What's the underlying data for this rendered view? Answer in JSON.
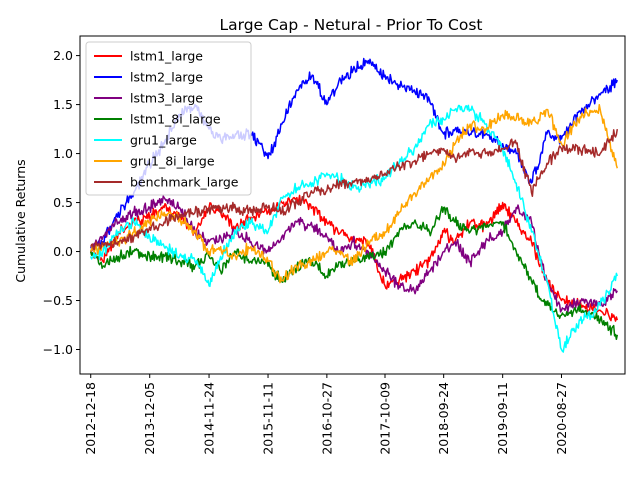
{
  "chart_data": {
    "type": "line",
    "title": "Large Cap - Netural - Prior To Cost",
    "xlabel": "",
    "ylabel": "Cumulative Returns",
    "xlim": [
      "2012-10-15",
      "2021-09-10"
    ],
    "ylim": [
      -1.25,
      2.2
    ],
    "x_ticks": [
      "2012-12-18",
      "2013-12-05",
      "2014-11-24",
      "2015-11-11",
      "2016-10-27",
      "2017-10-09",
      "2018-09-24",
      "2019-09-11",
      "2020-08-27"
    ],
    "y_ticks": [
      -1.0,
      -0.5,
      0.0,
      0.5,
      1.0,
      1.5,
      2.0
    ],
    "y_tick_labels": [
      "−1.0",
      "−0.5",
      "0.0",
      "0.5",
      "1.0",
      "1.5",
      "2.0"
    ],
    "grid": false,
    "legend_position": "upper-left",
    "series": [
      {
        "name": "lstm1_large",
        "color": "#ff0000",
        "points": [
          [
            "2012-12-18",
            0.0
          ],
          [
            "2013-03-01",
            -0.1
          ],
          [
            "2013-06-01",
            0.2
          ],
          [
            "2013-09-01",
            0.3
          ],
          [
            "2013-12-05",
            0.35
          ],
          [
            "2014-03-01",
            0.45
          ],
          [
            "2014-06-01",
            0.35
          ],
          [
            "2014-09-01",
            0.2
          ],
          [
            "2014-11-24",
            0.45
          ],
          [
            "2015-02-01",
            0.4
          ],
          [
            "2015-05-01",
            0.25
          ],
          [
            "2015-08-01",
            0.35
          ],
          [
            "2015-11-11",
            0.4
          ],
          [
            "2016-02-01",
            0.5
          ],
          [
            "2016-05-01",
            0.55
          ],
          [
            "2016-08-01",
            0.45
          ],
          [
            "2016-10-27",
            0.3
          ],
          [
            "2017-01-01",
            0.2
          ],
          [
            "2017-04-01",
            0.15
          ],
          [
            "2017-07-01",
            0.1
          ],
          [
            "2017-10-09",
            -0.35
          ],
          [
            "2018-01-01",
            -0.3
          ],
          [
            "2018-04-01",
            -0.2
          ],
          [
            "2018-07-01",
            -0.1
          ],
          [
            "2018-09-24",
            0.2
          ],
          [
            "2018-12-01",
            0.1
          ],
          [
            "2019-03-01",
            0.3
          ],
          [
            "2019-06-01",
            0.25
          ],
          [
            "2019-09-11",
            0.5
          ],
          [
            "2019-12-01",
            0.3
          ],
          [
            "2020-03-01",
            0.1
          ],
          [
            "2020-06-01",
            -0.3
          ],
          [
            "2020-08-27",
            -0.5
          ],
          [
            "2021-01-01",
            -0.55
          ],
          [
            "2021-04-15",
            -0.6
          ],
          [
            "2021-07-26",
            -0.7
          ]
        ]
      },
      {
        "name": "lstm2_large",
        "color": "#0000ff",
        "points": [
          [
            "2012-12-18",
            0.05
          ],
          [
            "2013-03-01",
            0.1
          ],
          [
            "2013-06-01",
            0.4
          ],
          [
            "2013-09-01",
            0.6
          ],
          [
            "2013-12-05",
            0.9
          ],
          [
            "2014-03-01",
            1.1
          ],
          [
            "2014-06-01",
            1.4
          ],
          [
            "2014-09-01",
            1.5
          ],
          [
            "2014-11-24",
            1.25
          ],
          [
            "2015-02-01",
            1.15
          ],
          [
            "2015-05-01",
            1.2
          ],
          [
            "2015-08-01",
            1.2
          ],
          [
            "2015-11-11",
            0.95
          ],
          [
            "2016-02-01",
            1.3
          ],
          [
            "2016-05-01",
            1.65
          ],
          [
            "2016-08-01",
            1.8
          ],
          [
            "2016-10-27",
            1.5
          ],
          [
            "2017-01-01",
            1.7
          ],
          [
            "2017-04-01",
            1.85
          ],
          [
            "2017-07-01",
            1.95
          ],
          [
            "2017-10-09",
            1.8
          ],
          [
            "2018-01-01",
            1.7
          ],
          [
            "2018-04-01",
            1.65
          ],
          [
            "2018-07-01",
            1.55
          ],
          [
            "2018-09-24",
            1.2
          ],
          [
            "2018-12-01",
            1.25
          ],
          [
            "2019-03-01",
            1.2
          ],
          [
            "2019-06-01",
            1.2
          ],
          [
            "2019-09-11",
            1.1
          ],
          [
            "2019-12-01",
            1.0
          ],
          [
            "2020-03-01",
            0.7
          ],
          [
            "2020-06-01",
            1.2
          ],
          [
            "2020-08-27",
            1.15
          ],
          [
            "2021-01-01",
            1.45
          ],
          [
            "2021-04-15",
            1.6
          ],
          [
            "2021-07-26",
            1.75
          ]
        ]
      },
      {
        "name": "lstm3_large",
        "color": "#800080",
        "points": [
          [
            "2012-12-18",
            0.02
          ],
          [
            "2013-03-01",
            0.15
          ],
          [
            "2013-06-01",
            0.3
          ],
          [
            "2013-09-01",
            0.4
          ],
          [
            "2013-12-05",
            0.45
          ],
          [
            "2014-03-01",
            0.55
          ],
          [
            "2014-06-01",
            0.45
          ],
          [
            "2014-09-01",
            0.2
          ],
          [
            "2014-11-24",
            0.1
          ],
          [
            "2015-02-01",
            0.15
          ],
          [
            "2015-05-01",
            0.2
          ],
          [
            "2015-08-01",
            0.1
          ],
          [
            "2015-11-11",
            0.0
          ],
          [
            "2016-02-01",
            0.15
          ],
          [
            "2016-05-01",
            0.3
          ],
          [
            "2016-08-01",
            0.25
          ],
          [
            "2016-10-27",
            0.15
          ],
          [
            "2017-01-01",
            0.0
          ],
          [
            "2017-04-01",
            0.1
          ],
          [
            "2017-07-01",
            0.0
          ],
          [
            "2017-10-09",
            -0.2
          ],
          [
            "2018-01-01",
            -0.35
          ],
          [
            "2018-04-01",
            -0.4
          ],
          [
            "2018-07-01",
            -0.2
          ],
          [
            "2018-09-24",
            0.0
          ],
          [
            "2018-12-01",
            0.1
          ],
          [
            "2019-03-01",
            -0.1
          ],
          [
            "2019-06-01",
            0.1
          ],
          [
            "2019-09-11",
            0.2
          ],
          [
            "2019-12-01",
            0.45
          ],
          [
            "2020-03-01",
            0.3
          ],
          [
            "2020-06-01",
            -0.3
          ],
          [
            "2020-08-27",
            -0.6
          ],
          [
            "2021-01-01",
            -0.5
          ],
          [
            "2021-04-15",
            -0.55
          ],
          [
            "2021-07-26",
            -0.4
          ]
        ]
      },
      {
        "name": "lstm1_8i_large",
        "color": "#008000",
        "points": [
          [
            "2012-12-18",
            0.0
          ],
          [
            "2013-03-01",
            -0.15
          ],
          [
            "2013-06-01",
            -0.05
          ],
          [
            "2013-09-01",
            0.0
          ],
          [
            "2013-12-05",
            -0.05
          ],
          [
            "2014-03-01",
            -0.05
          ],
          [
            "2014-06-01",
            -0.1
          ],
          [
            "2014-09-01",
            -0.15
          ],
          [
            "2014-11-24",
            -0.05
          ],
          [
            "2015-02-01",
            -0.2
          ],
          [
            "2015-05-01",
            0.0
          ],
          [
            "2015-08-01",
            -0.1
          ],
          [
            "2015-11-11",
            -0.15
          ],
          [
            "2016-02-01",
            -0.3
          ],
          [
            "2016-05-01",
            -0.15
          ],
          [
            "2016-08-01",
            -0.1
          ],
          [
            "2016-10-27",
            -0.25
          ],
          [
            "2017-01-01",
            -0.15
          ],
          [
            "2017-04-01",
            -0.1
          ],
          [
            "2017-07-01",
            -0.05
          ],
          [
            "2017-10-09",
            0.0
          ],
          [
            "2018-01-01",
            0.2
          ],
          [
            "2018-04-01",
            0.3
          ],
          [
            "2018-07-01",
            0.2
          ],
          [
            "2018-09-24",
            0.45
          ],
          [
            "2018-12-01",
            0.3
          ],
          [
            "2019-03-01",
            0.2
          ],
          [
            "2019-06-01",
            0.25
          ],
          [
            "2019-09-11",
            0.3
          ],
          [
            "2019-12-01",
            0.0
          ],
          [
            "2020-03-01",
            -0.3
          ],
          [
            "2020-06-01",
            -0.55
          ],
          [
            "2020-08-27",
            -0.65
          ],
          [
            "2021-01-01",
            -0.6
          ],
          [
            "2021-04-15",
            -0.7
          ],
          [
            "2021-07-26",
            -0.85
          ]
        ]
      },
      {
        "name": "gru1_large",
        "color": "#00ffff",
        "points": [
          [
            "2012-12-18",
            -0.05
          ],
          [
            "2013-03-01",
            0.0
          ],
          [
            "2013-06-01",
            0.2
          ],
          [
            "2013-09-01",
            0.3
          ],
          [
            "2013-12-05",
            0.15
          ],
          [
            "2014-03-01",
            0.05
          ],
          [
            "2014-06-01",
            -0.05
          ],
          [
            "2014-09-01",
            -0.1
          ],
          [
            "2014-11-24",
            -0.35
          ],
          [
            "2015-02-01",
            -0.05
          ],
          [
            "2015-05-01",
            0.2
          ],
          [
            "2015-08-01",
            0.3
          ],
          [
            "2015-11-11",
            0.2
          ],
          [
            "2016-02-01",
            0.55
          ],
          [
            "2016-05-01",
            0.65
          ],
          [
            "2016-08-01",
            0.7
          ],
          [
            "2016-10-27",
            0.8
          ],
          [
            "2017-01-01",
            0.75
          ],
          [
            "2017-04-01",
            0.65
          ],
          [
            "2017-07-01",
            0.7
          ],
          [
            "2017-10-09",
            0.75
          ],
          [
            "2018-01-01",
            0.9
          ],
          [
            "2018-04-01",
            1.05
          ],
          [
            "2018-07-01",
            1.3
          ],
          [
            "2018-09-24",
            1.35
          ],
          [
            "2018-12-01",
            1.45
          ],
          [
            "2019-03-01",
            1.45
          ],
          [
            "2019-06-01",
            1.3
          ],
          [
            "2019-09-11",
            1.05
          ],
          [
            "2019-12-01",
            0.7
          ],
          [
            "2020-03-01",
            0.2
          ],
          [
            "2020-06-01",
            -0.3
          ],
          [
            "2020-08-27",
            -1.0
          ],
          [
            "2021-01-01",
            -0.7
          ],
          [
            "2021-04-15",
            -0.55
          ],
          [
            "2021-07-26",
            -0.25
          ]
        ]
      },
      {
        "name": "gru1_8i_large",
        "color": "#ffa500",
        "points": [
          [
            "2012-12-18",
            0.0
          ],
          [
            "2013-03-01",
            0.05
          ],
          [
            "2013-06-01",
            0.1
          ],
          [
            "2013-09-01",
            0.2
          ],
          [
            "2013-12-05",
            0.3
          ],
          [
            "2014-03-01",
            0.4
          ],
          [
            "2014-06-01",
            0.35
          ],
          [
            "2014-09-01",
            0.2
          ],
          [
            "2014-11-24",
            0.0
          ],
          [
            "2015-02-01",
            0.05
          ],
          [
            "2015-05-01",
            -0.05
          ],
          [
            "2015-08-01",
            0.05
          ],
          [
            "2015-11-11",
            -0.1
          ],
          [
            "2016-02-01",
            -0.3
          ],
          [
            "2016-05-01",
            -0.15
          ],
          [
            "2016-08-01",
            -0.1
          ],
          [
            "2016-10-27",
            0.0
          ],
          [
            "2017-01-01",
            0.0
          ],
          [
            "2017-04-01",
            -0.1
          ],
          [
            "2017-07-01",
            0.1
          ],
          [
            "2017-10-09",
            0.2
          ],
          [
            "2018-01-01",
            0.4
          ],
          [
            "2018-04-01",
            0.6
          ],
          [
            "2018-07-01",
            0.75
          ],
          [
            "2018-09-24",
            0.9
          ],
          [
            "2018-12-01",
            1.1
          ],
          [
            "2019-03-01",
            1.3
          ],
          [
            "2019-06-01",
            1.25
          ],
          [
            "2019-09-11",
            1.4
          ],
          [
            "2019-12-01",
            1.35
          ],
          [
            "2020-03-01",
            1.3
          ],
          [
            "2020-06-01",
            1.45
          ],
          [
            "2020-08-27",
            1.1
          ],
          [
            "2021-01-01",
            1.4
          ],
          [
            "2021-04-15",
            1.45
          ],
          [
            "2021-07-26",
            0.85
          ]
        ]
      },
      {
        "name": "benchmark_large",
        "color": "#a52a2a",
        "points": [
          [
            "2012-12-18",
            0.05
          ],
          [
            "2013-03-01",
            0.08
          ],
          [
            "2013-06-01",
            0.1
          ],
          [
            "2013-09-01",
            0.15
          ],
          [
            "2013-12-05",
            0.25
          ],
          [
            "2014-03-01",
            0.3
          ],
          [
            "2014-06-01",
            0.38
          ],
          [
            "2014-09-01",
            0.4
          ],
          [
            "2014-11-24",
            0.45
          ],
          [
            "2015-02-01",
            0.45
          ],
          [
            "2015-05-01",
            0.45
          ],
          [
            "2015-08-01",
            0.4
          ],
          [
            "2015-11-11",
            0.45
          ],
          [
            "2016-02-01",
            0.4
          ],
          [
            "2016-05-01",
            0.5
          ],
          [
            "2016-08-01",
            0.6
          ],
          [
            "2016-10-27",
            0.62
          ],
          [
            "2017-01-01",
            0.68
          ],
          [
            "2017-04-01",
            0.72
          ],
          [
            "2017-07-01",
            0.75
          ],
          [
            "2017-10-09",
            0.8
          ],
          [
            "2018-01-01",
            0.88
          ],
          [
            "2018-04-01",
            0.92
          ],
          [
            "2018-07-01",
            1.0
          ],
          [
            "2018-09-24",
            1.05
          ],
          [
            "2018-12-01",
            0.95
          ],
          [
            "2019-03-01",
            1.02
          ],
          [
            "2019-06-01",
            1.0
          ],
          [
            "2019-09-11",
            1.05
          ],
          [
            "2019-12-01",
            1.1
          ],
          [
            "2020-03-01",
            0.6
          ],
          [
            "2020-06-01",
            0.9
          ],
          [
            "2020-08-27",
            1.05
          ],
          [
            "2021-01-01",
            1.05
          ],
          [
            "2021-04-15",
            1.0
          ],
          [
            "2021-07-26",
            1.25
          ]
        ]
      }
    ]
  }
}
